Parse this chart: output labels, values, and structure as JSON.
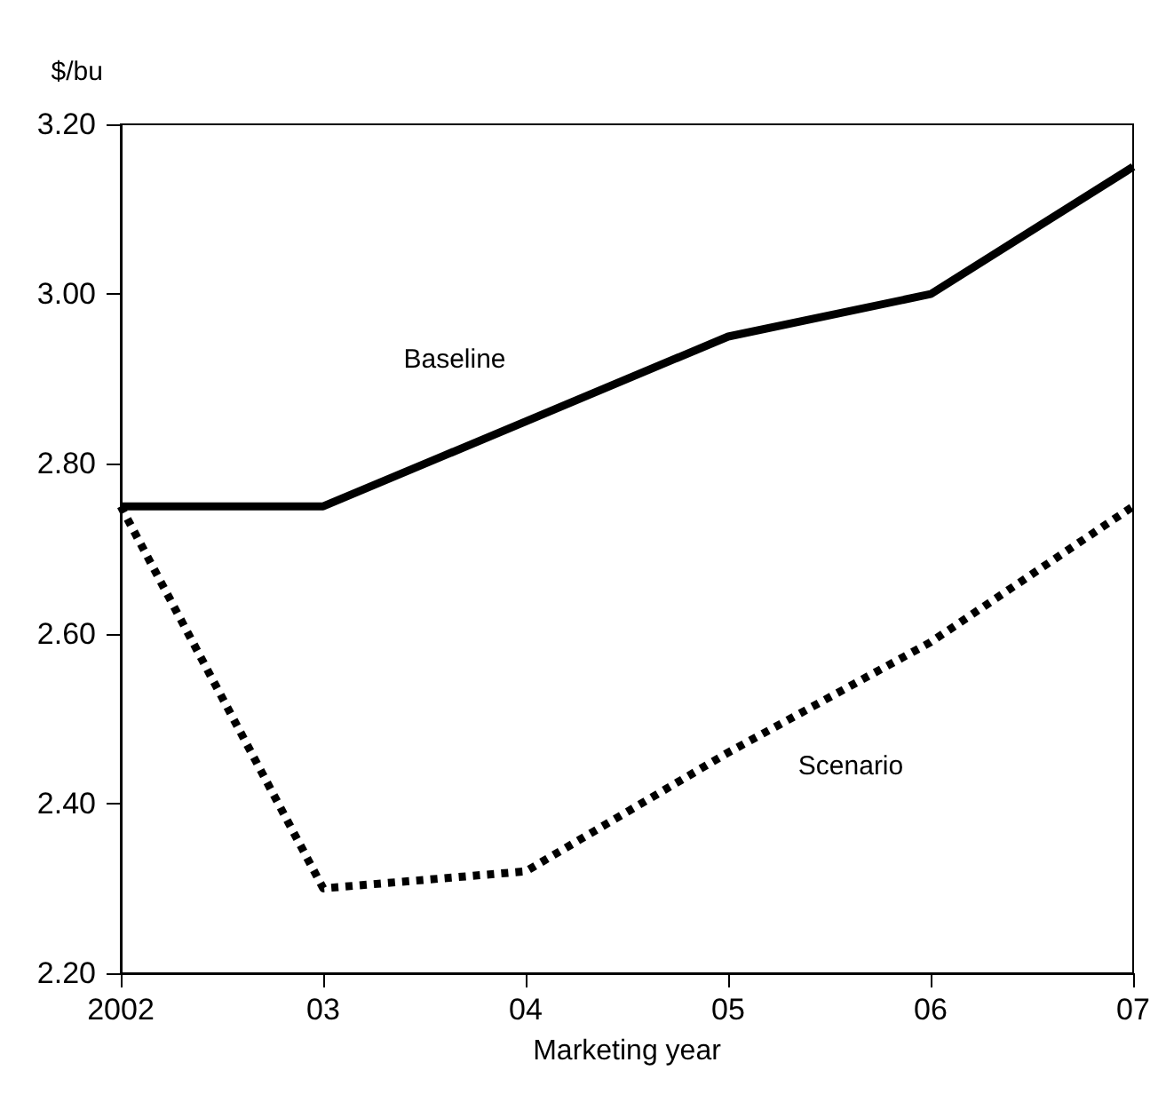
{
  "chart_data": {
    "type": "line",
    "xlabel": "Marketing year",
    "ylabel": "$/bu",
    "categories": [
      "2002",
      "03",
      "04",
      "05",
      "06",
      "07"
    ],
    "series": [
      {
        "name": "Baseline",
        "color": "#000000",
        "line_style": "solid",
        "values": [
          2.75,
          2.75,
          2.85,
          2.95,
          3.0,
          3.15
        ]
      },
      {
        "name": "Scenario",
        "color": "#000000",
        "line_style": "dotted",
        "values": [
          2.75,
          2.3,
          2.32,
          2.46,
          2.59,
          2.75
        ]
      }
    ],
    "ylim": [
      2.2,
      3.2
    ],
    "yticks": [
      {
        "value": 2.2,
        "label": "2.20"
      },
      {
        "value": 2.4,
        "label": "2.40"
      },
      {
        "value": 2.6,
        "label": "2.60"
      },
      {
        "value": 2.8,
        "label": "2.80"
      },
      {
        "value": 3.0,
        "label": "3.00"
      },
      {
        "value": 3.2,
        "label": "3.20"
      }
    ],
    "grid": false,
    "legend": false,
    "marker": "none"
  }
}
